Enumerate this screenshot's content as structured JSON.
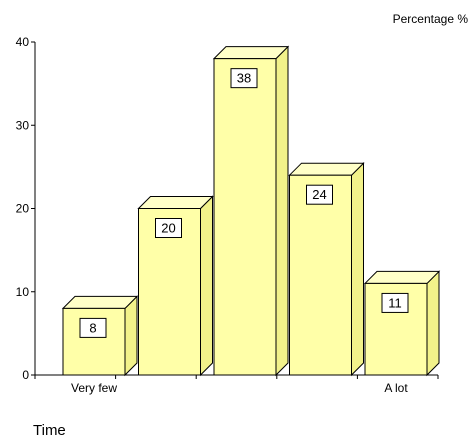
{
  "chart_data": {
    "type": "bar",
    "categories": [
      "Very few",
      "",
      "",
      "",
      "A lot"
    ],
    "values": [
      8,
      20,
      38,
      24,
      11
    ],
    "data_labels": [
      "8",
      "20",
      "38",
      "24",
      "11"
    ],
    "ylabel": "Percentage %",
    "xlabel": "Time",
    "ylim": [
      0,
      40
    ],
    "yticks": [
      "0",
      "10",
      "20",
      "30",
      "40"
    ],
    "grid": false,
    "legend": "none",
    "colors": {
      "bar_front": "#FFFFA8",
      "bar_top": "#FFFFC8",
      "bar_side": "#F2F28A",
      "stroke": "#000000",
      "label_box": "#FFFFFF"
    }
  }
}
